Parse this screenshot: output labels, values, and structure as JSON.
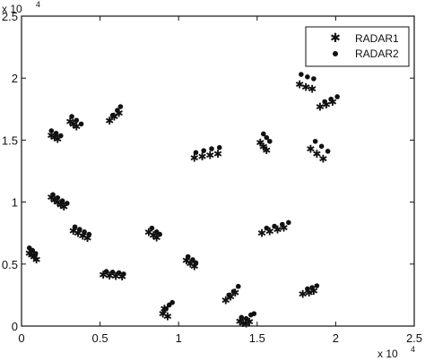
{
  "chart_data": {
    "type": "scatter",
    "x_multiplier_label": "x 10",
    "x_multiplier_exp": "4",
    "y_multiplier_label": "x 10",
    "y_multiplier_exp": "4",
    "xlim": [
      0,
      25000
    ],
    "ylim": [
      0,
      25000
    ],
    "x_ticks": [
      0,
      5000,
      10000,
      15000,
      20000,
      25000
    ],
    "x_tick_labels": [
      "0",
      "0.5",
      "1",
      "1.5",
      "2",
      "2.5"
    ],
    "y_ticks": [
      0,
      5000,
      10000,
      15000,
      20000,
      25000
    ],
    "y_tick_labels": [
      "0",
      "0.5",
      "1",
      "1.5",
      "2",
      "2.5"
    ],
    "grid": false,
    "legend_position": "top-right",
    "legend": [
      "RADAR1",
      "RADAR2"
    ],
    "series": [
      {
        "name": "RADAR1",
        "marker": "asterisk",
        "color": "#111111",
        "points": [
          [
            500,
            5900
          ],
          [
            650,
            5750
          ],
          [
            800,
            5600
          ],
          [
            950,
            5400
          ],
          [
            1900,
            10400
          ],
          [
            2100,
            10200
          ],
          [
            2300,
            10000
          ],
          [
            2500,
            9800
          ],
          [
            2700,
            9650
          ],
          [
            1900,
            15400
          ],
          [
            2100,
            15250
          ],
          [
            2300,
            15100
          ],
          [
            3100,
            16500
          ],
          [
            3300,
            16300
          ],
          [
            3500,
            16100
          ],
          [
            3300,
            7700
          ],
          [
            3600,
            7500
          ],
          [
            3900,
            7300
          ],
          [
            4200,
            7100
          ],
          [
            5200,
            4150
          ],
          [
            5600,
            4100
          ],
          [
            6000,
            4050
          ],
          [
            6400,
            4000
          ],
          [
            5600,
            16600
          ],
          [
            5900,
            16900
          ],
          [
            6200,
            17200
          ],
          [
            8100,
            7600
          ],
          [
            8400,
            7350
          ],
          [
            8600,
            7150
          ],
          [
            9000,
            1000
          ],
          [
            9100,
            1400
          ],
          [
            9300,
            800
          ],
          [
            10500,
            5300
          ],
          [
            10750,
            5050
          ],
          [
            11000,
            4850
          ],
          [
            11000,
            13600
          ],
          [
            11500,
            13700
          ],
          [
            12000,
            13800
          ],
          [
            12500,
            13900
          ],
          [
            13000,
            2100
          ],
          [
            13300,
            2400
          ],
          [
            13600,
            2700
          ],
          [
            13900,
            400
          ],
          [
            14100,
            250
          ],
          [
            14300,
            200
          ],
          [
            14500,
            350
          ],
          [
            15200,
            14800
          ],
          [
            15400,
            14500
          ],
          [
            15600,
            14200
          ],
          [
            15300,
            7500
          ],
          [
            15800,
            7650
          ],
          [
            16300,
            7800
          ],
          [
            16700,
            7950
          ],
          [
            17700,
            19500
          ],
          [
            18100,
            19300
          ],
          [
            18500,
            19150
          ],
          [
            17900,
            2600
          ],
          [
            18300,
            2700
          ],
          [
            18600,
            2850
          ],
          [
            18400,
            14300
          ],
          [
            18800,
            13900
          ],
          [
            19200,
            13500
          ],
          [
            19000,
            17700
          ],
          [
            19400,
            17900
          ],
          [
            19800,
            18100
          ]
        ]
      },
      {
        "name": "RADAR2",
        "marker": "dot",
        "color": "#111111",
        "points": [
          [
            500,
            6300
          ],
          [
            700,
            6100
          ],
          [
            900,
            5850
          ],
          [
            2000,
            10600
          ],
          [
            2300,
            10350
          ],
          [
            2600,
            10100
          ],
          [
            2900,
            9900
          ],
          [
            1900,
            15750
          ],
          [
            2200,
            15550
          ],
          [
            2500,
            15350
          ],
          [
            3200,
            16900
          ],
          [
            3500,
            16600
          ],
          [
            3800,
            16300
          ],
          [
            3400,
            8000
          ],
          [
            3700,
            7800
          ],
          [
            4000,
            7600
          ],
          [
            4300,
            7400
          ],
          [
            5400,
            4400
          ],
          [
            5800,
            4350
          ],
          [
            6200,
            4300
          ],
          [
            6500,
            4200
          ],
          [
            5800,
            17000
          ],
          [
            6100,
            17400
          ],
          [
            6300,
            17700
          ],
          [
            8300,
            7900
          ],
          [
            8600,
            7600
          ],
          [
            8800,
            7400
          ],
          [
            9200,
            1400
          ],
          [
            9400,
            1700
          ],
          [
            9600,
            1900
          ],
          [
            10600,
            5600
          ],
          [
            10900,
            5350
          ],
          [
            11100,
            5100
          ],
          [
            11100,
            14000
          ],
          [
            11600,
            14150
          ],
          [
            12100,
            14300
          ],
          [
            12600,
            14400
          ],
          [
            13200,
            2500
          ],
          [
            13500,
            2800
          ],
          [
            13800,
            3200
          ],
          [
            14000,
            700
          ],
          [
            14300,
            600
          ],
          [
            14600,
            900
          ],
          [
            14800,
            1000
          ],
          [
            15400,
            15500
          ],
          [
            15600,
            15200
          ],
          [
            15800,
            14900
          ],
          [
            15600,
            7900
          ],
          [
            16100,
            8050
          ],
          [
            16600,
            8200
          ],
          [
            17000,
            8350
          ],
          [
            17800,
            20300
          ],
          [
            18200,
            20100
          ],
          [
            18600,
            19950
          ],
          [
            18200,
            3000
          ],
          [
            18500,
            3100
          ],
          [
            18800,
            3250
          ],
          [
            18700,
            14900
          ],
          [
            19100,
            14500
          ],
          [
            19500,
            14100
          ],
          [
            19300,
            18100
          ],
          [
            19700,
            18300
          ],
          [
            20100,
            18500
          ]
        ]
      }
    ]
  }
}
